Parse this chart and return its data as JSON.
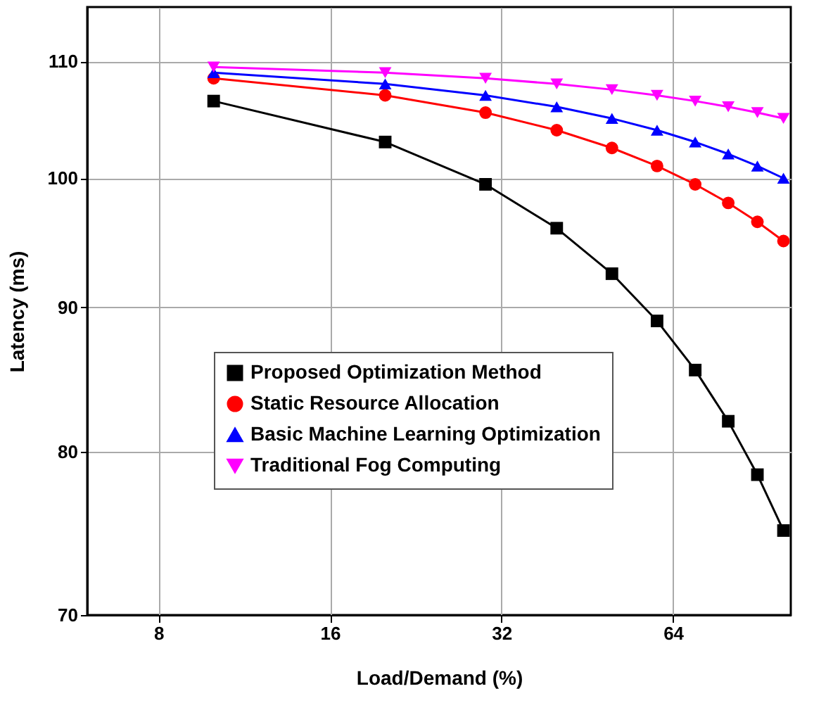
{
  "chart_data": {
    "type": "line",
    "xlabel": "Load/Demand (%)",
    "ylabel": "Latency (ms)",
    "x": [
      10,
      20,
      30,
      40,
      50,
      60,
      70,
      80,
      90,
      100
    ],
    "series": [
      {
        "name": "Proposed Optimization Method",
        "color": "#000000",
        "marker": "square",
        "values": [
          106.5,
          103,
          99.5,
          96,
          92.5,
          89,
          85.5,
          82,
          78.5,
          75
        ]
      },
      {
        "name": "Static Resource Allocation",
        "color": "#ff0000",
        "marker": "circle",
        "values": [
          108.5,
          107,
          105.5,
          104,
          102.5,
          101,
          99.5,
          98,
          96.5,
          95
        ]
      },
      {
        "name": "Basic Machine Learning Optimization",
        "color": "#0000ff",
        "marker": "triangle",
        "values": [
          109,
          108,
          107,
          106,
          105,
          104,
          103,
          102,
          101,
          100
        ]
      },
      {
        "name": "Traditional Fog Computing",
        "color": "#ff00ff",
        "marker": "triangle-down",
        "values": [
          109.5,
          109,
          108.5,
          108,
          107.5,
          107,
          106.5,
          106,
          105.5,
          105
        ]
      }
    ],
    "xlim": [
      6,
      103
    ],
    "xticks": [
      8,
      16,
      32,
      64
    ],
    "ylim": [
      70,
      115
    ],
    "yticks": [
      70,
      80,
      90,
      100,
      110
    ],
    "log": "xy",
    "grid": true,
    "legend": "bottom left",
    "line_style": "solid"
  }
}
